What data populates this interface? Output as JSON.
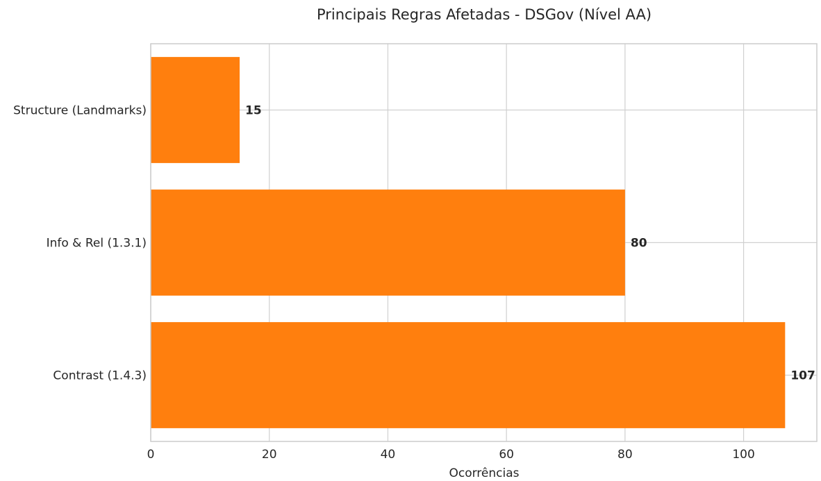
{
  "chart_data": {
    "type": "bar",
    "orientation": "horizontal",
    "title": "Principais Regras Afetadas - DSGov (Nível AA)",
    "xlabel": "Ocorrências",
    "ylabel": "",
    "categories": [
      "Structure (Landmarks)",
      "Info & Rel (1.3.1)",
      "Contrast (1.4.3)"
    ],
    "values": [
      15,
      80,
      107
    ],
    "value_labels": [
      "15",
      "80",
      "107"
    ],
    "xlim": [
      0,
      112.35
    ],
    "x_ticks": [
      0,
      20,
      40,
      60,
      80,
      100
    ],
    "x_tick_labels": [
      "0",
      "20",
      "40",
      "60",
      "80",
      "100"
    ],
    "grid": true,
    "legend": "none",
    "colors": {
      "bar": "#ff7f0e",
      "grid": "#d0d0d0",
      "spine": "#cccccc",
      "text": "#262626",
      "background": "#ffffff"
    }
  }
}
